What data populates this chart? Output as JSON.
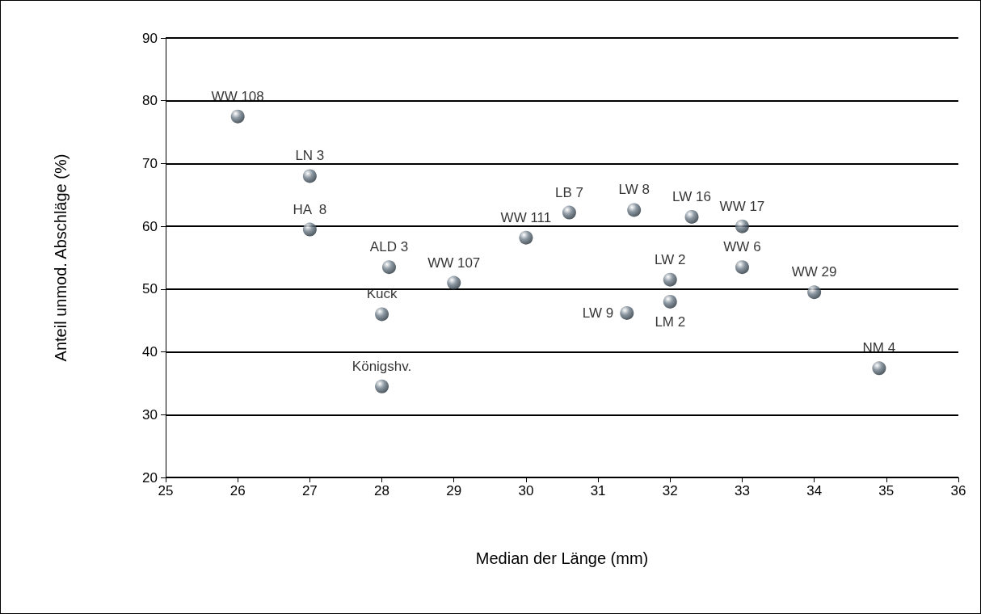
{
  "chart_data": {
    "type": "scatter",
    "xlabel": "Median der Länge (mm)",
    "ylabel": "Anteil unmod. Abschläge (%)",
    "xlim": [
      25,
      36
    ],
    "xticks": [
      25,
      26,
      27,
      28,
      29,
      30,
      31,
      32,
      33,
      34,
      35,
      36
    ],
    "ylim": [
      20,
      90
    ],
    "yticks": [
      20,
      30,
      40,
      50,
      60,
      70,
      80,
      90
    ],
    "grid": "y",
    "marker": "circle",
    "series": [
      {
        "color": "#6e7d8a",
        "x": [
          26,
          27,
          27,
          28.1,
          29,
          28,
          28,
          30,
          30.6,
          31.5,
          32.3,
          33,
          33,
          32,
          31.4,
          32,
          34,
          34.9
        ],
        "values": [
          77.5,
          68,
          59.5,
          53.5,
          51,
          46,
          34.5,
          58.2,
          62.2,
          62.6,
          61.5,
          60,
          53.5,
          51.5,
          46.2,
          48,
          49.5,
          37.4
        ]
      }
    ],
    "annotations": [
      {
        "text": "WW 108",
        "x": 26,
        "y": 77.5
      },
      {
        "text": "LN 3",
        "x": 27,
        "y": 68
      },
      {
        "text": "HA  8",
        "x": 27,
        "y": 59.5
      },
      {
        "text": "ALD 3",
        "x": 28.1,
        "y": 53.5
      },
      {
        "text": "WW 107",
        "x": 29,
        "y": 51
      },
      {
        "text": "Kück",
        "x": 28,
        "y": 46
      },
      {
        "text": "Königshv.",
        "x": 28,
        "y": 34.5
      },
      {
        "text": "WW 111",
        "x": 30,
        "y": 58.2
      },
      {
        "text": "LB 7",
        "x": 30.6,
        "y": 62.2
      },
      {
        "text": "LW 8",
        "x": 31.5,
        "y": 62.6
      },
      {
        "text": "LW 16",
        "x": 32.3,
        "y": 61.5
      },
      {
        "text": "WW 17",
        "x": 33,
        "y": 60
      },
      {
        "text": "WW 6",
        "x": 33,
        "y": 53.5
      },
      {
        "text": "LW 2",
        "x": 32,
        "y": 51.5
      },
      {
        "text": "LW 9",
        "x": 31.4,
        "y": 46.2
      },
      {
        "text": "LM 2",
        "x": 32,
        "y": 48
      },
      {
        "text": "WW 29",
        "x": 34,
        "y": 49.5
      },
      {
        "text": "NM 4",
        "x": 34.9,
        "y": 37.4
      }
    ]
  }
}
